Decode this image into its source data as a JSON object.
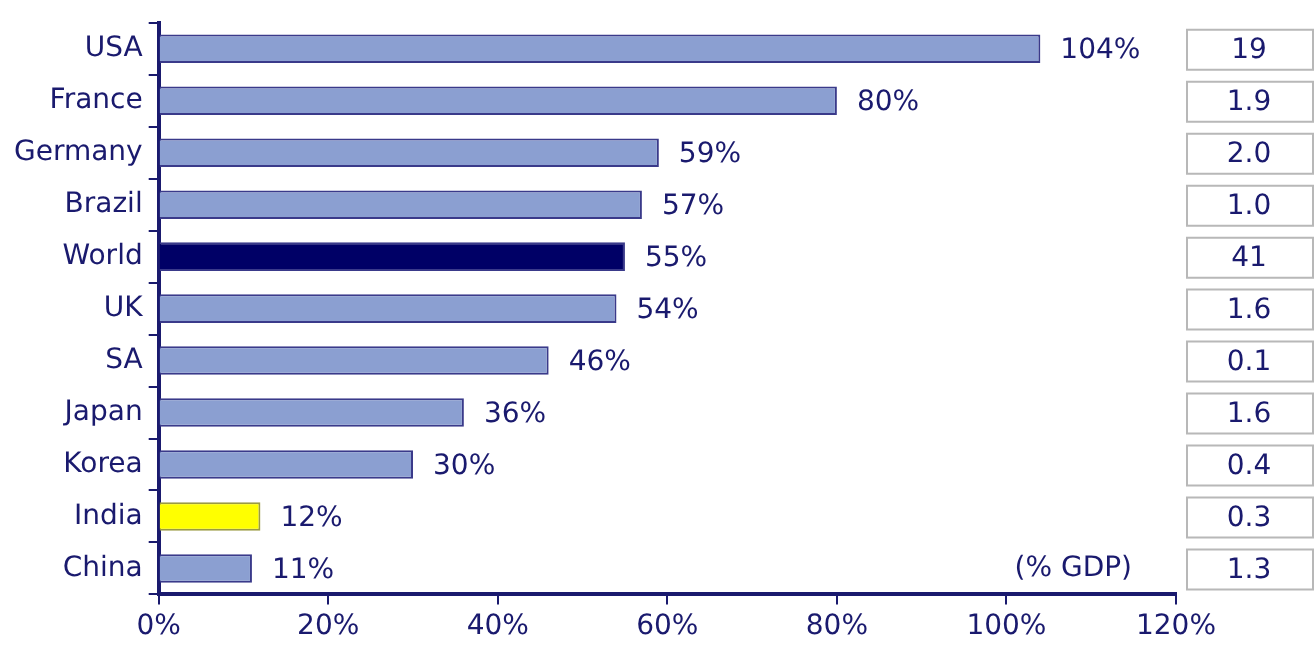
{
  "chart_data": {
    "type": "bar",
    "orientation": "horizontal",
    "categories": [
      "USA",
      "France",
      "Germany",
      "Brazil",
      "World",
      "UK",
      "SA",
      "Japan",
      "Korea",
      "India",
      "China"
    ],
    "values": [
      104,
      80,
      59,
      57,
      55,
      54,
      46,
      36,
      30,
      12,
      11
    ],
    "colors": [
      "#8b9fd1",
      "#8b9fd1",
      "#8b9fd1",
      "#8b9fd1",
      "#000066",
      "#8b9fd1",
      "#8b9fd1",
      "#8b9fd1",
      "#8b9fd1",
      "#ffff00",
      "#8b9fd1"
    ],
    "value_labels": [
      "104%",
      "80%",
      "59%",
      "57%",
      "55%",
      "54%",
      "46%",
      "36%",
      "30%",
      "12%",
      "11%"
    ],
    "xlim": [
      0,
      120
    ],
    "xticks": [
      {
        "value": 0,
        "label": "0%"
      },
      {
        "value": 20,
        "label": "20%"
      },
      {
        "value": 40,
        "label": "40%"
      },
      {
        "value": 60,
        "label": "60%"
      },
      {
        "value": 80,
        "label": "80%"
      },
      {
        "value": 100,
        "label": "100%"
      },
      {
        "value": 120,
        "label": "120%"
      }
    ],
    "grid": false,
    "legend": false,
    "annotations": [
      "19",
      "1.9",
      "2.0",
      "1.0",
      "41",
      "1.6",
      "0.1",
      "1.6",
      "0.4",
      "0.3",
      "1.3",
      "(% GDP)"
    ]
  }
}
